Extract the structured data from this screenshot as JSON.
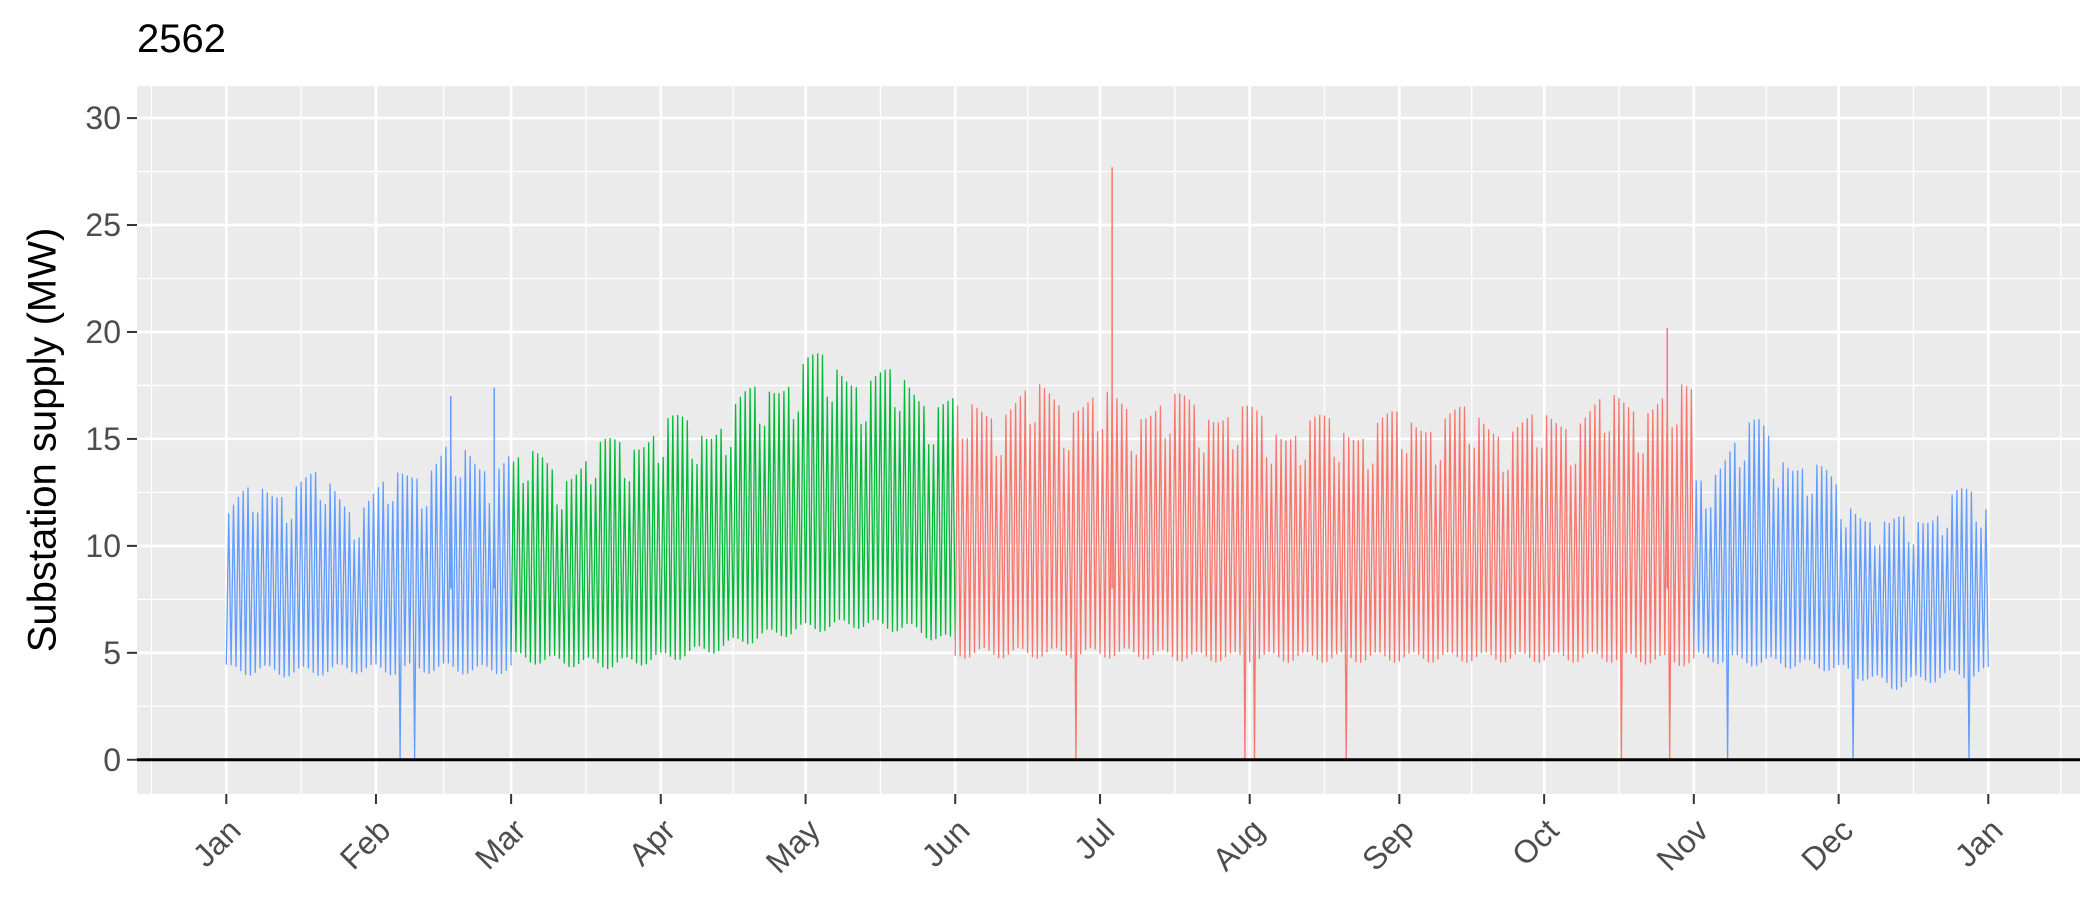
{
  "chart_data": {
    "type": "line",
    "title": "2562",
    "xlabel": "",
    "ylabel": "Substation supply (MW)",
    "x_tick_labels": [
      "Jan",
      "Feb",
      "Mar",
      "Apr",
      "May",
      "Jun",
      "Jul",
      "Aug",
      "Sep",
      "Oct",
      "Nov",
      "Dec",
      "Jan"
    ],
    "y_ticks": [
      0,
      5,
      10,
      15,
      20,
      25,
      30
    ],
    "ylim": [
      -1.6,
      31.5
    ],
    "xlim_days": [
      -18.5,
      384
    ],
    "grid": true,
    "background": "#ebebeb",
    "zero_line": true,
    "legend": "none",
    "series": [
      {
        "color": "#619cff",
        "segments": [
          {
            "start_day": 0,
            "end_day": 59,
            "low": [
              4.2,
              4.2,
              4.1,
              4.2,
              4.3,
              4.2,
              4.3,
              4.3,
              4.2,
              4.3
            ],
            "high": [
              11.5,
              12.5,
              13.0,
              12.8,
              12.0,
              12.5,
              13.5,
              14.5,
              13.5,
              14.5
            ]
          },
          {
            "start_day": 304,
            "end_day": 365,
            "low": [
              4.8,
              4.7,
              4.6,
              4.5,
              4.4,
              4.0,
              3.5,
              3.8,
              4.0,
              4.1
            ],
            "high": [
              13.0,
              14.5,
              15.5,
              14.0,
              13.0,
              12.0,
              10.5,
              11.5,
              12.2,
              11.8
            ]
          }
        ]
      },
      {
        "color": "#00ba38",
        "segments": [
          {
            "start_day": 59,
            "end_day": 151,
            "low": [
              4.8,
              4.6,
              4.5,
              4.8,
              5.2,
              5.8,
              6.2,
              6.4,
              6.2,
              5.5
            ],
            "high": [
              14.0,
              13.5,
              14.5,
              15.5,
              15.5,
              17.0,
              18.5,
              18.0,
              17.5,
              16.5
            ]
          }
        ]
      },
      {
        "color": "#f8766d",
        "segments": [
          {
            "start_day": 151,
            "end_day": 304,
            "low": [
              5.0,
              5.0,
              5.0,
              4.8,
              4.8,
              4.8,
              4.8,
              4.8,
              4.8,
              4.6
            ],
            "high": [
              16.0,
              17.0,
              16.5,
              16.5,
              15.5,
              15.5,
              16.0,
              15.5,
              16.5,
              17.0
            ]
          }
        ]
      }
    ],
    "annotated_peaks": [
      {
        "day": 183,
        "value": 27.7
      },
      {
        "day": 298,
        "value": 20.2
      },
      {
        "day": 46,
        "value": 17.0
      },
      {
        "day": 55,
        "value": 17.4
      }
    ],
    "dips_to_zero_days": [
      35,
      38,
      175,
      210,
      212,
      231,
      288,
      298,
      310,
      336,
      360
    ]
  }
}
